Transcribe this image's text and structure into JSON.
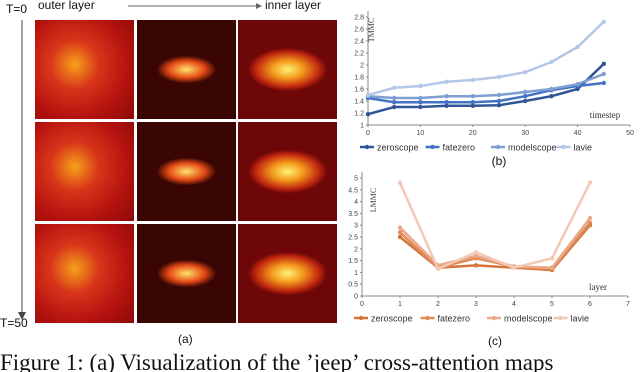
{
  "figure": {
    "time_start": "T=0",
    "time_end": "T=50",
    "outer_label": "outer layer",
    "inner_label": "inner layer",
    "panel_a": "(a)",
    "caption": "Figure 1: (a) Visualization of the ’jeep’ cross-attention maps"
  },
  "chart_data": [
    {
      "type": "line",
      "panel_label": "(b)",
      "y_label": "TMMC",
      "x_label": "timestep",
      "x": [
        0,
        5,
        10,
        15,
        20,
        25,
        30,
        35,
        40,
        45
      ],
      "xlim": [
        0,
        50
      ],
      "xticks": [
        0,
        10,
        20,
        30,
        40,
        50
      ],
      "ylim": [
        1,
        2.8
      ],
      "yticks": [
        1,
        1.2,
        1.4,
        1.6,
        1.8,
        2,
        2.2,
        2.4,
        2.6,
        2.8
      ],
      "series": [
        {
          "name": "zeroscope",
          "color": "#2f5597",
          "values": [
            1.18,
            1.3,
            1.3,
            1.32,
            1.32,
            1.33,
            1.4,
            1.48,
            1.6,
            2.02
          ]
        },
        {
          "name": "fatezero",
          "color": "#4472c4",
          "values": [
            1.45,
            1.38,
            1.38,
            1.38,
            1.38,
            1.4,
            1.48,
            1.58,
            1.65,
            1.7
          ]
        },
        {
          "name": "modelscope",
          "color": "#7f9fd2",
          "values": [
            1.48,
            1.45,
            1.45,
            1.48,
            1.48,
            1.5,
            1.55,
            1.6,
            1.68,
            1.85
          ]
        },
        {
          "name": "lavie",
          "color": "#b4c7e7",
          "values": [
            1.5,
            1.62,
            1.65,
            1.72,
            1.75,
            1.8,
            1.88,
            2.05,
            2.3,
            2.72
          ]
        }
      ]
    },
    {
      "type": "line",
      "panel_label": "(c)",
      "y_label": "LMMC",
      "x_label": "layer",
      "x": [
        1,
        2,
        3,
        4,
        5,
        6
      ],
      "xlim": [
        0,
        7
      ],
      "xticks": [
        0,
        1,
        2,
        3,
        4,
        5,
        6,
        7
      ],
      "ylim": [
        0,
        5
      ],
      "yticks": [
        0,
        0.5,
        1,
        1.5,
        2,
        2.5,
        3,
        3.5,
        4,
        4.5,
        5
      ],
      "series": [
        {
          "name": "zeroscope",
          "color": "#d4733a",
          "values": [
            2.5,
            1.2,
            1.3,
            1.2,
            1.1,
            3.0
          ]
        },
        {
          "name": "fatezero",
          "color": "#e08a5a",
          "values": [
            2.7,
            1.2,
            1.6,
            1.25,
            1.15,
            3.1
          ]
        },
        {
          "name": "modelscope",
          "color": "#eaa886",
          "values": [
            2.9,
            1.3,
            1.7,
            1.25,
            1.2,
            3.3
          ]
        },
        {
          "name": "lavie",
          "color": "#f3c9b5",
          "values": [
            4.8,
            1.15,
            1.85,
            1.2,
            1.6,
            4.8
          ]
        }
      ]
    }
  ]
}
